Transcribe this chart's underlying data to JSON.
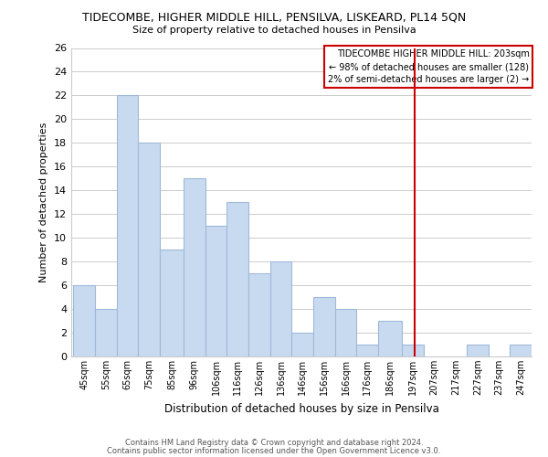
{
  "title": "TIDECOMBE, HIGHER MIDDLE HILL, PENSILVA, LISKEARD, PL14 5QN",
  "subtitle": "Size of property relative to detached houses in Pensilva",
  "xlabel": "Distribution of detached houses by size in Pensilva",
  "ylabel": "Number of detached properties",
  "bar_edges": [
    45,
    55,
    65,
    75,
    85,
    96,
    106,
    116,
    126,
    136,
    146,
    156,
    166,
    176,
    186,
    197,
    207,
    217,
    227,
    237,
    247
  ],
  "bar_heights": [
    6,
    4,
    22,
    18,
    9,
    15,
    11,
    13,
    7,
    8,
    2,
    5,
    4,
    1,
    3,
    1,
    0,
    0,
    1,
    0,
    1
  ],
  "bar_color": "#c8daf0",
  "bar_edgecolor": "#a0b8d8",
  "reference_line_x": 203,
  "reference_line_color": "#cc0000",
  "ylim": [
    0,
    26
  ],
  "yticks": [
    0,
    2,
    4,
    6,
    8,
    10,
    12,
    14,
    16,
    18,
    20,
    22,
    24,
    26
  ],
  "grid_color": "#cccccc",
  "annotation_title": "TIDECOMBE HIGHER MIDDLE HILL: 203sqm",
  "annotation_line1": "← 98% of detached houses are smaller (128)",
  "annotation_line2": "2% of semi-detached houses are larger (2) →",
  "annotation_box_color": "#ffffff",
  "annotation_border_color": "#cc0000",
  "footer_line1": "Contains HM Land Registry data © Crown copyright and database right 2024.",
  "footer_line2": "Contains public sector information licensed under the Open Government Licence v3.0.",
  "tick_labels": [
    "45sqm",
    "55sqm",
    "65sqm",
    "75sqm",
    "85sqm",
    "96sqm",
    "106sqm",
    "116sqm",
    "126sqm",
    "136sqm",
    "146sqm",
    "156sqm",
    "166sqm",
    "176sqm",
    "186sqm",
    "197sqm",
    "207sqm",
    "217sqm",
    "227sqm",
    "237sqm",
    "247sqm"
  ],
  "background_color": "#ffffff"
}
